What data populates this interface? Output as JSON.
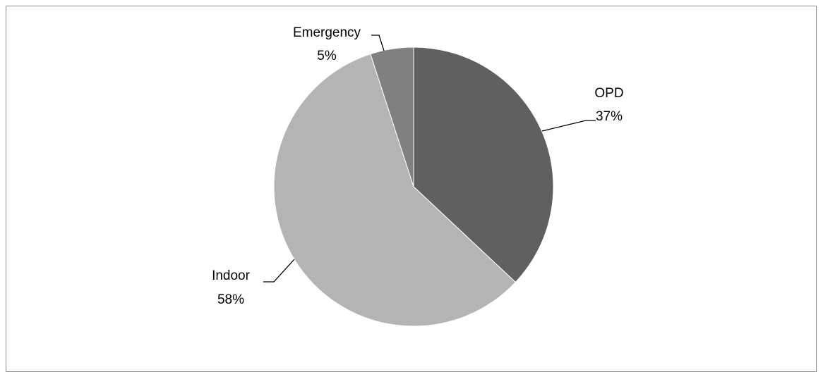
{
  "chart_data": {
    "type": "pie",
    "title": "",
    "slices": [
      {
        "label": "OPD",
        "value": 37,
        "value_label": "37%",
        "color": "#606060"
      },
      {
        "label": "Indoor",
        "value": 58,
        "value_label": "58%",
        "color": "#b4b4b4"
      },
      {
        "label": "Emergency",
        "value": 5,
        "value_label": "5%",
        "color": "#808080"
      }
    ],
    "start_angle_deg": 0,
    "direction": "clockwise",
    "legend": "none",
    "frame_border_color": "#8c8c8c"
  }
}
